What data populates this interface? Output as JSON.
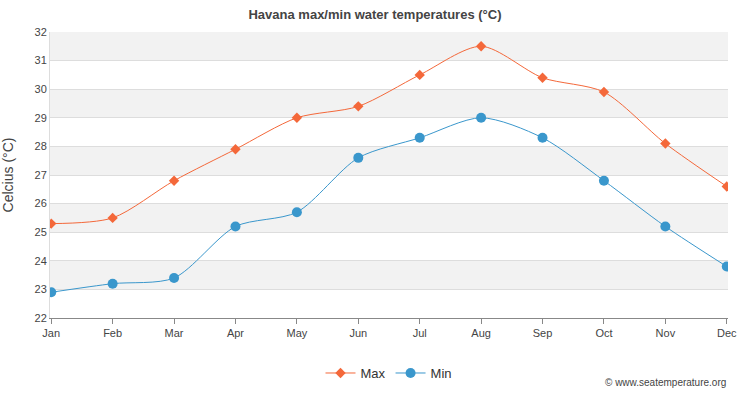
{
  "chart_data": {
    "type": "line",
    "title": "Havana max/min water temperatures (°C)",
    "y_label": "Celcius (°C)",
    "categories": [
      "Jan",
      "Feb",
      "Mar",
      "Apr",
      "May",
      "Jun",
      "Jul",
      "Aug",
      "Sep",
      "Oct",
      "Nov",
      "Dec"
    ],
    "series": [
      {
        "name": "Max",
        "color": "#f4683a",
        "marker": "diamond",
        "values": [
          25.3,
          25.5,
          26.8,
          27.9,
          29.0,
          29.4,
          30.5,
          31.5,
          30.4,
          29.9,
          28.1,
          26.6
        ]
      },
      {
        "name": "Min",
        "color": "#3a97cc",
        "marker": "circle",
        "values": [
          22.9,
          23.2,
          23.4,
          25.2,
          25.7,
          27.6,
          28.3,
          29.0,
          28.3,
          26.8,
          25.2,
          23.8
        ]
      }
    ],
    "ylim": [
      22,
      32
    ],
    "yticks": [
      22,
      23,
      24,
      25,
      26,
      27,
      28,
      29,
      30,
      31,
      32
    ],
    "grid": true,
    "legend": "bottom",
    "annotations": [
      "© www.seatemperature.org"
    ]
  }
}
